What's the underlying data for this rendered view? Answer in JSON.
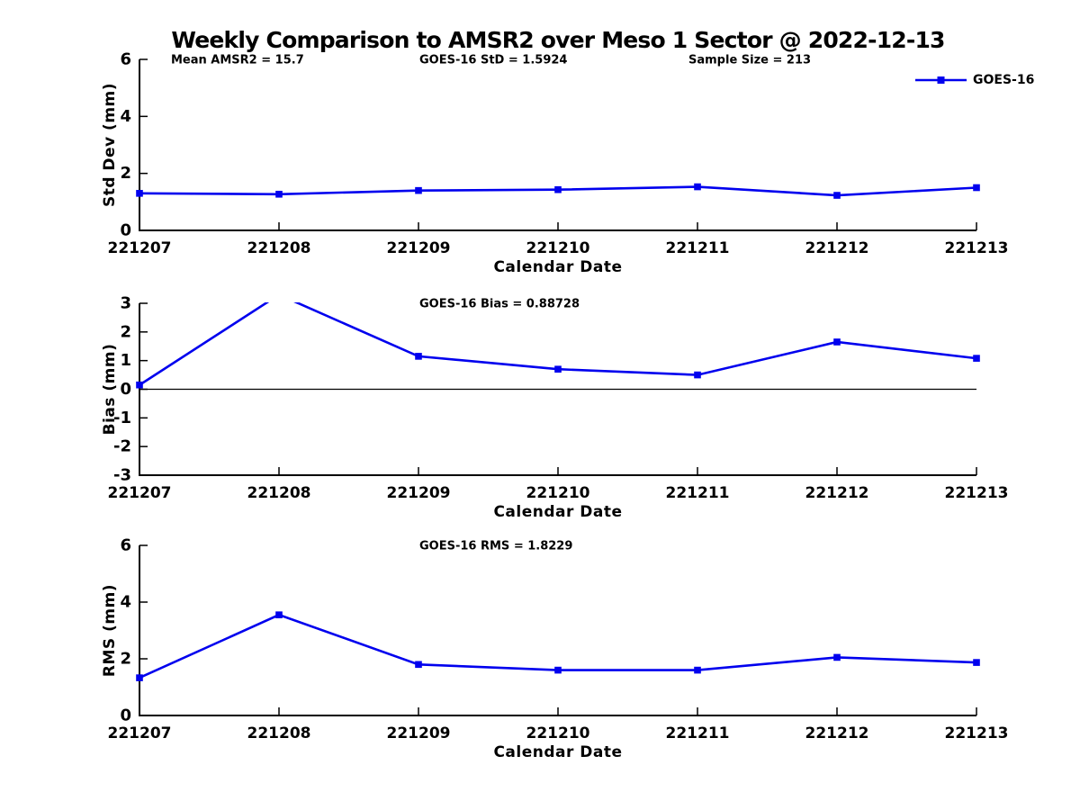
{
  "title": "Weekly Comparison to AMSR2 over Meso 1 Sector @ 2022-12-13",
  "colors": {
    "series": "#0000EE",
    "axis": "#000000",
    "zero_line": "#000000",
    "background": "#FFFFFF",
    "text": "#000000"
  },
  "chart_data": [
    {
      "type": "line",
      "name": "std-dev-panel",
      "annotations": [
        {
          "text": "Mean AMSR2 = 15.7"
        },
        {
          "text": "GOES-16 StD = 1.5924"
        },
        {
          "text": "Sample Size = 213"
        }
      ],
      "xlabel": "Calendar Date",
      "ylabel": "Std Dev (mm)",
      "categories": [
        "221207",
        "221208",
        "221209",
        "221210",
        "221211",
        "221212",
        "221213"
      ],
      "ylim": [
        0,
        6
      ],
      "yticks": [
        0,
        2,
        4,
        6
      ],
      "legend": "GOES-16",
      "legend_position": "top-right",
      "grid": false,
      "series": [
        {
          "name": "GOES-16",
          "values": [
            1.3,
            1.27,
            1.4,
            1.43,
            1.53,
            1.23,
            1.5
          ]
        }
      ]
    },
    {
      "type": "line",
      "name": "bias-panel",
      "annotations": [
        {
          "text": "GOES-16 Bias  = 0.88728"
        }
      ],
      "xlabel": "Calendar Date",
      "ylabel": "Bias (mm)",
      "categories": [
        "221207",
        "221208",
        "221209",
        "221210",
        "221211",
        "221212",
        "221213"
      ],
      "ylim": [
        -3,
        3
      ],
      "yticks": [
        -3,
        -2,
        -1,
        0,
        1,
        2,
        3
      ],
      "zero_line": true,
      "grid": false,
      "series": [
        {
          "name": "GOES-16",
          "values": [
            0.15,
            3.3,
            1.15,
            0.7,
            0.5,
            1.65,
            1.08
          ]
        }
      ]
    },
    {
      "type": "line",
      "name": "rms-panel",
      "annotations": [
        {
          "text": "GOES-16 RMS = 1.8229"
        }
      ],
      "xlabel": "Calendar Date",
      "ylabel": "RMS (mm)",
      "categories": [
        "221207",
        "221208",
        "221209",
        "221210",
        "221211",
        "221212",
        "221213"
      ],
      "ylim": [
        0,
        6
      ],
      "yticks": [
        0,
        2,
        4,
        6
      ],
      "grid": false,
      "series": [
        {
          "name": "GOES-16",
          "values": [
            1.33,
            3.55,
            1.8,
            1.6,
            1.6,
            2.05,
            1.87
          ]
        }
      ]
    }
  ]
}
